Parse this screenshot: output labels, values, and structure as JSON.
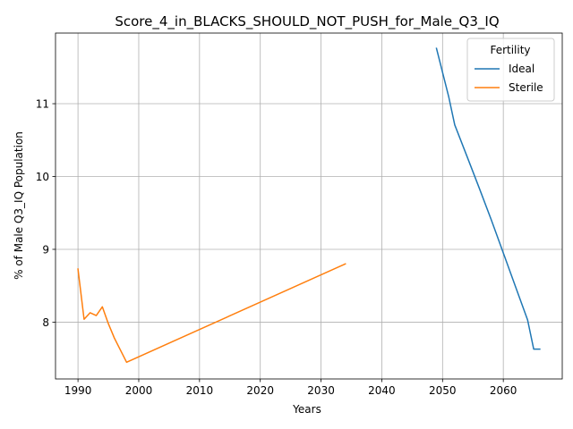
{
  "chart_data": {
    "type": "line",
    "title": "Score_4_in_BLACKS_SHOULD_NOT_PUSH_for_Male_Q3_IQ",
    "xlabel": "Years",
    "ylabel": "% of Male Q3_IQ Population",
    "xlim": [
      1986.3,
      2069.7
    ],
    "ylim": [
      7.22,
      11.97
    ],
    "xticks": [
      1990,
      2000,
      2010,
      2020,
      2030,
      2040,
      2050,
      2060
    ],
    "yticks": [
      8,
      9,
      10,
      11
    ],
    "grid": true,
    "legend": {
      "title": "Fertility",
      "placement": "top-right"
    },
    "series": [
      {
        "name": "Ideal",
        "color": "#1f77b4",
        "x": [
          2049,
          2051,
          2052,
          2054,
          2056,
          2058,
          2060,
          2062,
          2064,
          2065,
          2066
        ],
        "y": [
          11.76,
          11.1,
          10.71,
          10.28,
          9.85,
          9.41,
          8.95,
          8.49,
          8.03,
          7.63,
          7.63
        ]
      },
      {
        "name": "Sterile",
        "color": "#ff7f0e",
        "x": [
          1990,
          1991,
          1992,
          1993,
          1994,
          1995,
          1996,
          1998,
          2034
        ],
        "y": [
          8.73,
          8.04,
          8.13,
          8.09,
          8.21,
          7.98,
          7.78,
          7.45,
          8.8
        ]
      }
    ]
  }
}
